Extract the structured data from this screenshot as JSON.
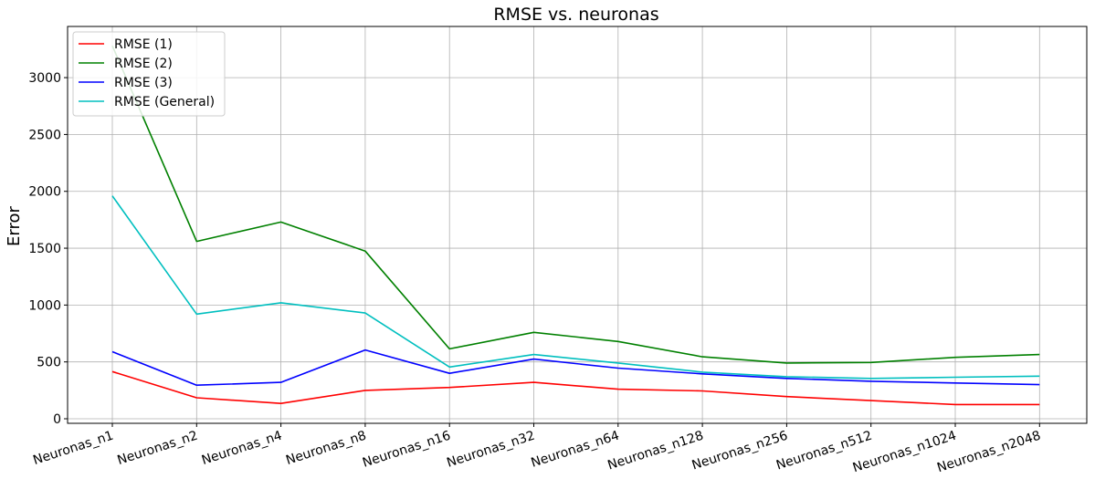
{
  "chart_data": {
    "type": "line",
    "title": "RMSE vs. neuronas",
    "xlabel": "",
    "ylabel": "Error",
    "categories": [
      "Neuronas_n1",
      "Neuronas_n2",
      "Neuronas_n4",
      "Neuronas_n8",
      "Neuronas_n16",
      "Neuronas_n32",
      "Neuronas_n64",
      "Neuronas_n128",
      "Neuronas_n256",
      "Neuronas_n512",
      "Neuronas_n1024",
      "Neuronas_n2048"
    ],
    "ylim": [
      -40,
      3450
    ],
    "yticks": [
      0,
      500,
      1000,
      1500,
      2000,
      2500,
      3000
    ],
    "grid": true,
    "legend_position": "upper left",
    "series": [
      {
        "name": "RMSE (1)",
        "color": "#ff0000",
        "values": [
          415,
          185,
          135,
          250,
          275,
          320,
          260,
          245,
          195,
          160,
          125,
          125
        ]
      },
      {
        "name": "RMSE (2)",
        "color": "#008000",
        "values": [
          3280,
          1560,
          1730,
          1475,
          615,
          760,
          680,
          545,
          490,
          495,
          540,
          565
        ]
      },
      {
        "name": "RMSE (3)",
        "color": "#0000ff",
        "values": [
          590,
          295,
          320,
          605,
          400,
          525,
          445,
          395,
          355,
          330,
          315,
          300
        ]
      },
      {
        "name": "RMSE (General)",
        "color": "#00bfbf",
        "values": [
          1960,
          920,
          1020,
          930,
          455,
          565,
          490,
          410,
          370,
          355,
          365,
          375
        ]
      }
    ]
  }
}
